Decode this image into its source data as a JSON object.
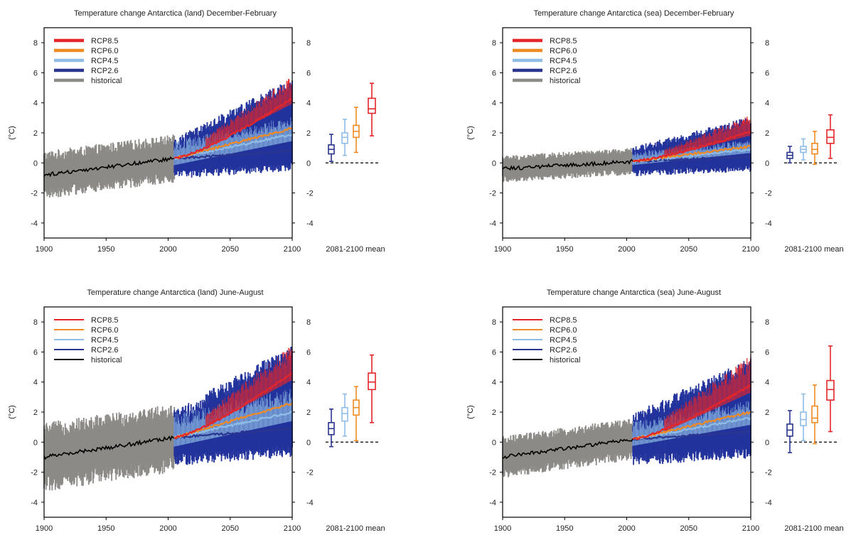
{
  "colors": {
    "RCP8.5": "#e4262b",
    "RCP6.0": "#f08a24",
    "RCP4.5": "#8fbde6",
    "RCP2.6": "#2a3590",
    "historical": "#000000",
    "historical_spread": "#8c8a86",
    "rcp_spread": "#23339c"
  },
  "chart_data": [
    {
      "type": "line",
      "title": "Temperature change Antarctica (land) December-February",
      "ylabel": "(°C)",
      "right_axis_label": "2081-2100 mean",
      "xlim": [
        1900,
        2100
      ],
      "ylim": [
        -5,
        9
      ],
      "x_ticks": [
        "1900",
        "1950",
        "2000",
        "2050",
        "2100"
      ],
      "y_ticks": [
        "-4",
        "-2",
        "0",
        "2",
        "4",
        "6",
        "8"
      ],
      "legend": [
        "RCP8.5",
        "RCP6.0",
        "RCP4.5",
        "RCP2.6",
        "historical"
      ],
      "historical": {
        "start": 1900,
        "end": 2005,
        "mean_start": -0.8,
        "mean_end": 0.3,
        "spread": 1.6
      },
      "series": [
        {
          "name": "RCP2.6",
          "end_mean": 0.8,
          "spread": 1.5
        },
        {
          "name": "RCP4.5",
          "end_mean": 1.9,
          "spread": 1.5
        },
        {
          "name": "RCP6.0",
          "end_mean": 2.3,
          "spread": 1.4
        },
        {
          "name": "RCP8.5",
          "end_mean": 4.3,
          "spread": 1.5
        }
      ],
      "boxplots_2081_2100": [
        {
          "name": "RCP2.6",
          "min": 0.1,
          "q1": 0.6,
          "median": 0.9,
          "q3": 1.2,
          "max": 1.9
        },
        {
          "name": "RCP4.5",
          "min": 0.5,
          "q1": 1.3,
          "median": 1.7,
          "q3": 2.0,
          "max": 2.9
        },
        {
          "name": "RCP6.0",
          "min": 0.7,
          "q1": 1.7,
          "median": 2.1,
          "q3": 2.5,
          "max": 3.7
        },
        {
          "name": "RCP8.5",
          "min": 1.8,
          "q1": 3.3,
          "median": 3.6,
          "q3": 4.3,
          "max": 5.3
        }
      ]
    },
    {
      "type": "line",
      "title": "Temperature change Antarctica (sea) December-February",
      "ylabel": "(°C)",
      "right_axis_label": "2081-2100 mean",
      "xlim": [
        1900,
        2100
      ],
      "ylim": [
        -5,
        9
      ],
      "x_ticks": [
        "1900",
        "1950",
        "2000",
        "2050",
        "2100"
      ],
      "y_ticks": [
        "-4",
        "-2",
        "0",
        "2",
        "4",
        "6",
        "8"
      ],
      "legend": [
        "RCP8.5",
        "RCP6.0",
        "RCP4.5",
        "RCP2.6",
        "historical"
      ],
      "historical": {
        "start": 1900,
        "end": 2005,
        "mean_start": -0.4,
        "mean_end": 0.1,
        "spread": 0.9
      },
      "series": [
        {
          "name": "RCP2.6",
          "end_mean": 0.4,
          "spread": 0.8
        },
        {
          "name": "RCP4.5",
          "end_mean": 0.9,
          "spread": 0.8
        },
        {
          "name": "RCP6.0",
          "end_mean": 1.1,
          "spread": 0.9
        },
        {
          "name": "RCP8.5",
          "end_mean": 2.1,
          "spread": 1.1
        }
      ],
      "boxplots_2081_2100": [
        {
          "name": "RCP2.6",
          "min": 0.0,
          "q1": 0.3,
          "median": 0.5,
          "q3": 0.7,
          "max": 1.1
        },
        {
          "name": "RCP4.5",
          "min": 0.2,
          "q1": 0.7,
          "median": 0.9,
          "q3": 1.1,
          "max": 1.6
        },
        {
          "name": "RCP6.0",
          "min": -0.1,
          "q1": 0.6,
          "median": 0.9,
          "q3": 1.3,
          "max": 2.1
        },
        {
          "name": "RCP8.5",
          "min": 0.3,
          "q1": 1.3,
          "median": 1.7,
          "q3": 2.2,
          "max": 3.2
        }
      ]
    },
    {
      "type": "line",
      "title": "Temperature change Antarctica (land) June-August",
      "ylabel": "(°C)",
      "right_axis_label": "2081-2100 mean",
      "xlim": [
        1900,
        2100
      ],
      "ylim": [
        -5,
        9
      ],
      "x_ticks": [
        "1900",
        "1950",
        "2000",
        "2050",
        "2100"
      ],
      "y_ticks": [
        "-4",
        "-2",
        "0",
        "2",
        "4",
        "6",
        "8"
      ],
      "legend": [
        "RCP8.5",
        "RCP6.0",
        "RCP4.5",
        "RCP2.6",
        "historical"
      ],
      "historical": {
        "start": 1900,
        "end": 2005,
        "mean_start": -1.0,
        "mean_end": 0.3,
        "spread": 2.3
      },
      "series": [
        {
          "name": "RCP2.6",
          "end_mean": 0.9,
          "spread": 2.1
        },
        {
          "name": "RCP4.5",
          "end_mean": 2.0,
          "spread": 2.0
        },
        {
          "name": "RCP6.0",
          "end_mean": 2.6,
          "spread": 1.9
        },
        {
          "name": "RCP8.5",
          "end_mean": 4.6,
          "spread": 1.9
        }
      ],
      "boxplots_2081_2100": [
        {
          "name": "RCP2.6",
          "min": -0.3,
          "q1": 0.5,
          "median": 0.9,
          "q3": 1.3,
          "max": 2.2
        },
        {
          "name": "RCP4.5",
          "min": 0.4,
          "q1": 1.4,
          "median": 1.9,
          "q3": 2.3,
          "max": 3.2
        },
        {
          "name": "RCP6.0",
          "min": 0.1,
          "q1": 1.8,
          "median": 2.3,
          "q3": 2.8,
          "max": 3.7
        },
        {
          "name": "RCP8.5",
          "min": 1.3,
          "q1": 3.5,
          "median": 4.0,
          "q3": 4.6,
          "max": 5.8
        }
      ]
    },
    {
      "type": "line",
      "title": "Temperature change Antarctica (sea) June-August",
      "ylabel": "(°C)",
      "right_axis_label": "2081-2100 mean",
      "xlim": [
        1900,
        2100
      ],
      "ylim": [
        -5,
        9
      ],
      "x_ticks": [
        "1900",
        "1950",
        "2000",
        "2050",
        "2100"
      ],
      "y_ticks": [
        "-4",
        "-2",
        "0",
        "2",
        "4",
        "6",
        "8"
      ],
      "legend": [
        "RCP8.5",
        "RCP6.0",
        "RCP4.5",
        "RCP2.6",
        "historical"
      ],
      "historical": {
        "start": 1900,
        "end": 2005,
        "mean_start": -1.0,
        "mean_end": 0.2,
        "spread": 1.4
      },
      "series": [
        {
          "name": "RCP2.6",
          "end_mean": 0.7,
          "spread": 1.6
        },
        {
          "name": "RCP4.5",
          "end_mean": 1.6,
          "spread": 1.5
        },
        {
          "name": "RCP6.0",
          "end_mean": 2.0,
          "spread": 1.5
        },
        {
          "name": "RCP8.5",
          "end_mean": 3.8,
          "spread": 2.0
        }
      ],
      "boxplots_2081_2100": [
        {
          "name": "RCP2.6",
          "min": -0.7,
          "q1": 0.4,
          "median": 0.8,
          "q3": 1.2,
          "max": 2.1
        },
        {
          "name": "RCP4.5",
          "min": 0.1,
          "q1": 1.1,
          "median": 1.5,
          "q3": 2.0,
          "max": 3.2
        },
        {
          "name": "RCP6.0",
          "min": -0.1,
          "q1": 1.3,
          "median": 1.6,
          "q3": 2.4,
          "max": 3.8
        },
        {
          "name": "RCP8.5",
          "min": 0.7,
          "q1": 2.8,
          "median": 3.5,
          "q3": 4.1,
          "max": 6.4
        }
      ]
    }
  ]
}
